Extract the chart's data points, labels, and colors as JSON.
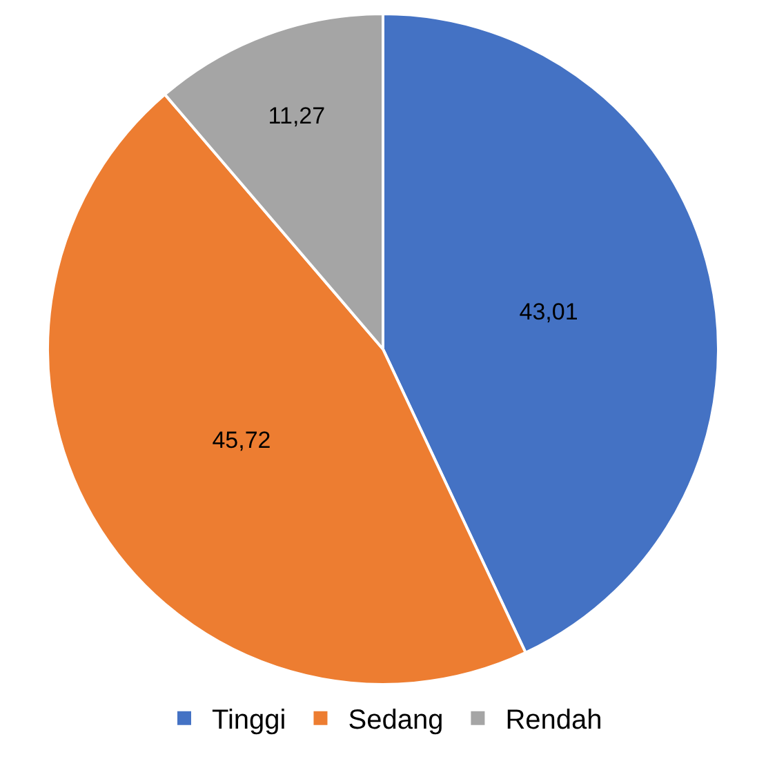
{
  "chart_data": {
    "type": "pie",
    "categories": [
      "Tinggi",
      "Sedang",
      "Rendah"
    ],
    "values": [
      43.01,
      45.72,
      11.27
    ],
    "colors": [
      "#4472c4",
      "#ed7d31",
      "#a5a5a5"
    ],
    "value_labels": [
      "43,01",
      "45,72",
      "11,27"
    ],
    "legend": "bottom"
  }
}
